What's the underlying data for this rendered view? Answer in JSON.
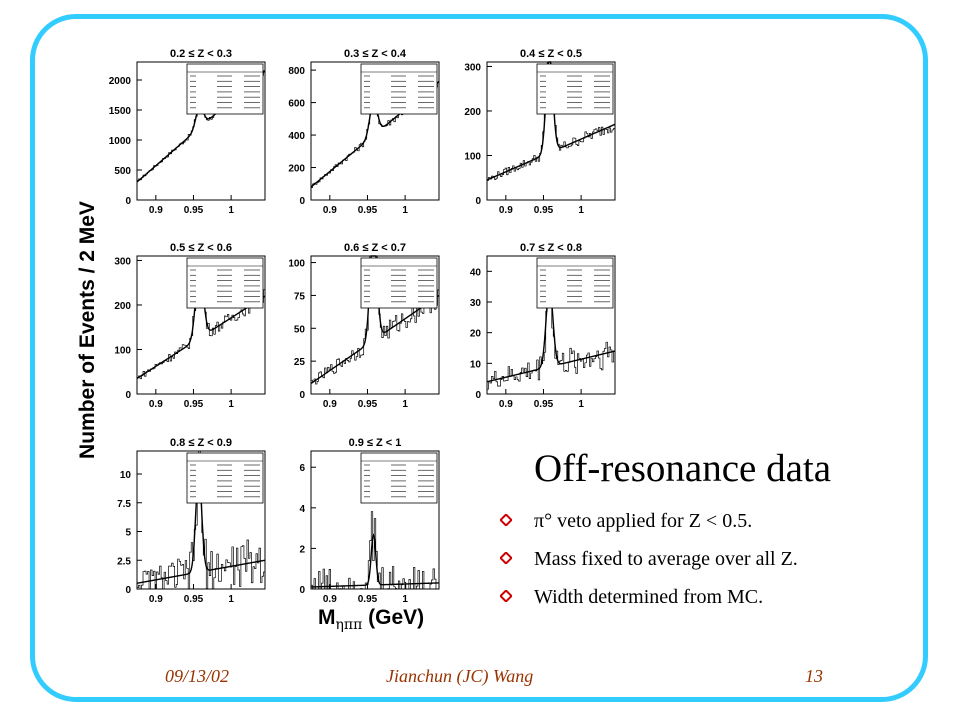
{
  "slide": {
    "title": "Off-resonance data",
    "bullets": [
      "π° veto applied for Z < 0.5.",
      "Mass fixed to average over all Z.",
      "Width determined from MC."
    ],
    "footer": {
      "date": "09/13/02",
      "author": "Jianchun (JC) Wang",
      "page": "13"
    },
    "colors": {
      "frame": "#33ccff",
      "bullet": "#cc0000",
      "footer": "#993300"
    },
    "bullet_icon": "diamond-icon"
  },
  "axes": {
    "ylabel": "Number of Events / 2 MeV",
    "xlabel_main": "M",
    "xlabel_sub": "ηππ",
    "xlabel_unit": "(GeV)"
  },
  "chart_data": [
    {
      "type": "line",
      "title": "0.2 ≤ Z < 0.3",
      "x": [
        0.875,
        1.045
      ],
      "ylim": [
        0,
        2300
      ],
      "yticks": [
        0,
        500,
        1000,
        1500,
        2000
      ],
      "xticks": [
        "0.9",
        "0.95",
        "1"
      ],
      "bg": [
        300,
        2150
      ],
      "peak": 350,
      "center": 0.958,
      "sigma": 0.005
    },
    {
      "type": "line",
      "title": "0.3 ≤ Z < 0.4",
      "x": [
        0.875,
        1.045
      ],
      "ylim": [
        0,
        850
      ],
      "yticks": [
        0,
        200,
        400,
        600,
        800
      ],
      "xticks": [
        "0.9",
        "0.95",
        "1"
      ],
      "bg": [
        80,
        730
      ],
      "peak": 210,
      "center": 0.958,
      "sigma": 0.005
    },
    {
      "type": "line",
      "title": "0.4 ≤ Z < 0.5",
      "x": [
        0.875,
        1.045
      ],
      "ylim": [
        0,
        310
      ],
      "yticks": [
        0,
        100,
        200,
        300
      ],
      "xticks": [
        "0.9",
        "0.95",
        "1"
      ],
      "bg": [
        45,
        170
      ],
      "peak": 215,
      "center": 0.958,
      "sigma": 0.0045
    },
    {
      "type": "line",
      "title": "0.5 ≤ Z < 0.6",
      "x": [
        0.875,
        1.045
      ],
      "ylim": [
        0,
        310
      ],
      "yticks": [
        0,
        100,
        200,
        300
      ],
      "xticks": [
        "0.9",
        "0.95",
        "1"
      ],
      "bg": [
        35,
        220
      ],
      "peak": 160,
      "center": 0.958,
      "sigma": 0.005
    },
    {
      "type": "line",
      "title": "0.6 ≤ Z < 0.7",
      "x": [
        0.875,
        1.045
      ],
      "ylim": [
        0,
        105
      ],
      "yticks": [
        0,
        25,
        50,
        75,
        100
      ],
      "xticks": [
        "0.9",
        "0.95",
        "1"
      ],
      "bg": [
        8,
        75
      ],
      "peak": 85,
      "center": 0.958,
      "sigma": 0.0045
    },
    {
      "type": "line",
      "title": "0.7 ≤ Z < 0.8",
      "x": [
        0.875,
        1.045
      ],
      "ylim": [
        0,
        45
      ],
      "yticks": [
        0,
        10,
        20,
        30,
        40
      ],
      "xticks": [
        "0.9",
        "0.95",
        "1"
      ],
      "bg": [
        4,
        14
      ],
      "peak": 26,
      "center": 0.958,
      "sigma": 0.0045
    },
    {
      "type": "line",
      "title": "0.8 ≤ Z < 0.9",
      "x": [
        0.875,
        1.045
      ],
      "ylim": [
        0,
        12
      ],
      "yticks": [
        0,
        2.5,
        5,
        7.5,
        10
      ],
      "xticks": [
        "0.9",
        "0.95",
        "1"
      ],
      "bg": [
        0.5,
        2.5
      ],
      "peak": 8.5,
      "center": 0.957,
      "sigma": 0.004
    },
    {
      "type": "line",
      "title": "0.9 ≤ Z < 1",
      "x": [
        0.875,
        1.045
      ],
      "ylim": [
        0,
        6.8
      ],
      "yticks": [
        0,
        2,
        4,
        6
      ],
      "xticks": [
        "0.9",
        "0.95",
        "1"
      ],
      "bg": [
        0.1,
        0.3
      ],
      "peak": 2.5,
      "center": 0.958,
      "sigma": 0.003
    }
  ]
}
